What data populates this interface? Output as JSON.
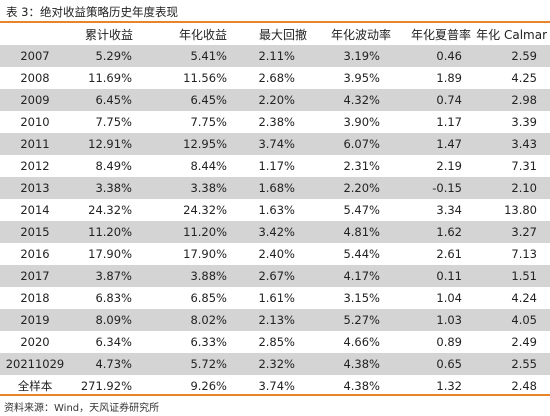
{
  "title": "表 3：绝对收益策略历史年度表现",
  "headers": [
    "",
    "累计收益",
    "年化收益",
    "最大回撤",
    "年化波动率",
    "年化夏普率",
    "年化 Calmar"
  ],
  "rows": [
    [
      "2007",
      "5.29%",
      "5.41%",
      "2.11%",
      "3.19%",
      "0.46",
      "2.59"
    ],
    [
      "2008",
      "11.69%",
      "11.56%",
      "2.68%",
      "3.95%",
      "1.89",
      "4.25"
    ],
    [
      "2009",
      "6.45%",
      "6.45%",
      "2.20%",
      "4.32%",
      "0.74",
      "2.98"
    ],
    [
      "2010",
      "7.75%",
      "7.75%",
      "2.38%",
      "3.90%",
      "1.17",
      "3.39"
    ],
    [
      "2011",
      "12.91%",
      "12.95%",
      "3.74%",
      "6.07%",
      "1.47",
      "3.43"
    ],
    [
      "2012",
      "8.49%",
      "8.44%",
      "1.17%",
      "2.31%",
      "2.19",
      "7.31"
    ],
    [
      "2013",
      "3.38%",
      "3.38%",
      "1.68%",
      "2.20%",
      "-0.15",
      "2.10"
    ],
    [
      "2014",
      "24.32%",
      "24.32%",
      "1.63%",
      "5.47%",
      "3.34",
      "13.80"
    ],
    [
      "2015",
      "11.20%",
      "11.20%",
      "3.42%",
      "4.81%",
      "1.62",
      "3.27"
    ],
    [
      "2016",
      "17.90%",
      "17.90%",
      "2.40%",
      "5.44%",
      "2.61",
      "7.13"
    ],
    [
      "2017",
      "3.87%",
      "3.88%",
      "2.67%",
      "4.17%",
      "0.11",
      "1.51"
    ],
    [
      "2018",
      "6.83%",
      "6.85%",
      "1.61%",
      "3.15%",
      "1.04",
      "4.24"
    ],
    [
      "2019",
      "8.09%",
      "8.02%",
      "2.13%",
      "5.27%",
      "1.03",
      "4.05"
    ],
    [
      "2020",
      "6.34%",
      "6.33%",
      "2.85%",
      "4.66%",
      "0.89",
      "2.49"
    ],
    [
      "20211029",
      "4.73%",
      "5.72%",
      "2.32%",
      "4.38%",
      "0.65",
      "2.55"
    ],
    [
      "全样本",
      "271.92%",
      "9.26%",
      "3.74%",
      "4.38%",
      "1.32",
      "2.48"
    ]
  ],
  "source": "资料来源：Wind，天风证券研究所",
  "colors": {
    "accent_rule": "#e8842a",
    "row_shade": "#d4d4d4"
  }
}
